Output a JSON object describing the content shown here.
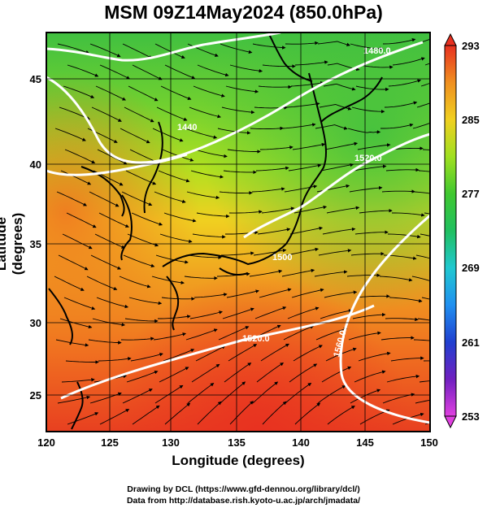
{
  "title": "MSM 09Z14May2024 (850.0hPa)",
  "axes": {
    "xlabel": "Longitude (degrees)",
    "ylabel": "Latitude  (degrees)",
    "xticks": [
      "120",
      "125",
      "130",
      "135",
      "140",
      "145",
      "150"
    ],
    "yticks": [
      "25",
      "30",
      "35",
      "40",
      "45"
    ],
    "xlim": [
      120,
      150
    ],
    "ylim": [
      22.4,
      47.6
    ]
  },
  "colorbar": {
    "ticks": [
      "293",
      "285",
      "277",
      "269",
      "261",
      "253"
    ],
    "range": [
      253,
      293
    ],
    "colors": [
      "#e040e0",
      "#6020c0",
      "#2040e0",
      "#20a0f0",
      "#20d0c0",
      "#20c040",
      "#60d020",
      "#c0e020",
      "#f0d020",
      "#f0a020",
      "#f06020",
      "#e03020"
    ]
  },
  "contours": {
    "color": "#ffffff",
    "labels": [
      "1480.0",
      "1440",
      "1520.0",
      "1500",
      "1520.0",
      "1560.0",
      "1500"
    ]
  },
  "credits": {
    "line1": "Drawing by DCL (https://www.gfd-dennou.org/library/dcl/)",
    "line2": "Data from http://database.rish.kyoto-u.ac.jp/arch/jmadata/"
  },
  "map_data": {
    "type": "temperature-shaded wind streamline map",
    "level_hPa": 850.0,
    "time": "09Z14May2024",
    "grid": true
  }
}
